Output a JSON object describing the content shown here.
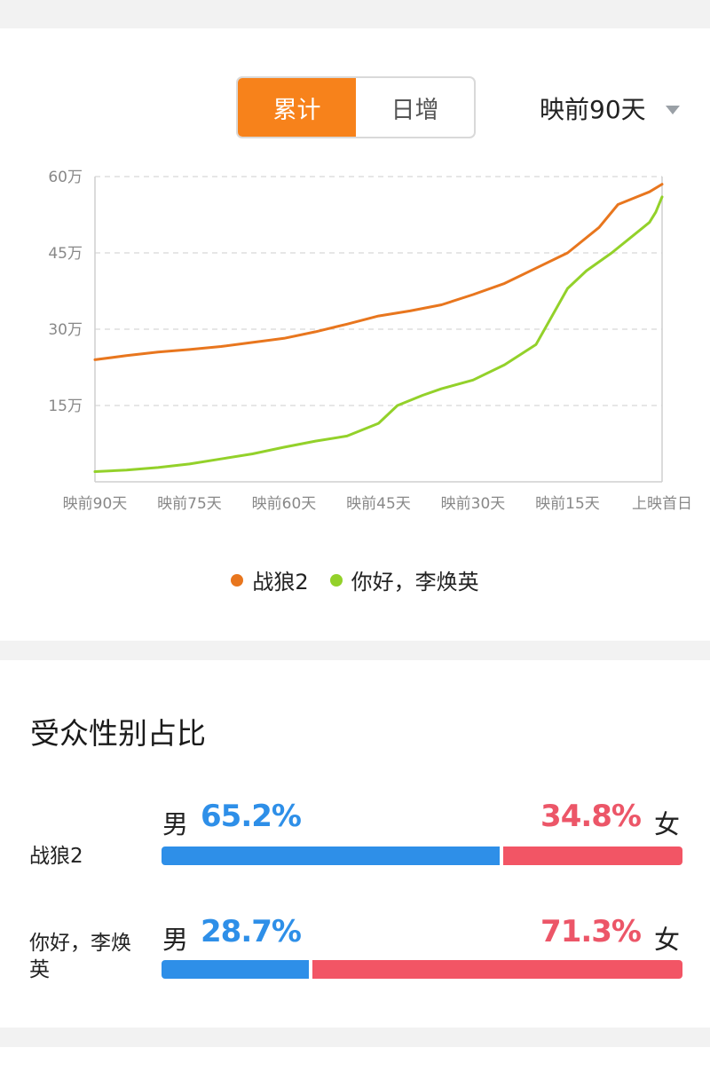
{
  "toggle": {
    "cumulative": "累计",
    "daily": "日增"
  },
  "range": {
    "label": "映前90天"
  },
  "chart_data": {
    "type": "line",
    "y_ticks": [
      "15万",
      "30万",
      "45万",
      "60万"
    ],
    "y_tick_values": [
      15,
      30,
      45,
      60
    ],
    "x_tick_labels": [
      "映前90天",
      "映前75天",
      "映前60天",
      "映前45天",
      "映前30天",
      "映前15天",
      "上映首日"
    ],
    "x_tick_values": [
      -90,
      -75,
      -60,
      -45,
      -30,
      -15,
      0
    ],
    "xlim": [
      -90,
      0
    ],
    "ylim": [
      0,
      60
    ],
    "grid": true,
    "legend": "bottom",
    "series": [
      {
        "name": "战狼2",
        "color": "#e8761e",
        "points": [
          [
            -90,
            24
          ],
          [
            -85,
            24.8
          ],
          [
            -80,
            25.5
          ],
          [
            -75,
            26
          ],
          [
            -70,
            26.6
          ],
          [
            -65,
            27.4
          ],
          [
            -60,
            28.2
          ],
          [
            -55,
            29.5
          ],
          [
            -50,
            31
          ],
          [
            -45,
            32.6
          ],
          [
            -40,
            33.6
          ],
          [
            -35,
            34.8
          ],
          [
            -30,
            36.8
          ],
          [
            -25,
            39
          ],
          [
            -20,
            42
          ],
          [
            -15,
            45
          ],
          [
            -10,
            50
          ],
          [
            -7,
            54.5
          ],
          [
            -4,
            56
          ],
          [
            -2,
            57
          ],
          [
            0,
            58.5
          ]
        ]
      },
      {
        "name": "你好，李焕英",
        "color": "#93d12a",
        "points": [
          [
            -90,
            2
          ],
          [
            -85,
            2.3
          ],
          [
            -80,
            2.8
          ],
          [
            -75,
            3.5
          ],
          [
            -70,
            4.5
          ],
          [
            -65,
            5.5
          ],
          [
            -60,
            6.8
          ],
          [
            -55,
            8
          ],
          [
            -50,
            9
          ],
          [
            -45,
            11.5
          ],
          [
            -42,
            15
          ],
          [
            -38,
            17
          ],
          [
            -35,
            18.3
          ],
          [
            -30,
            20
          ],
          [
            -25,
            23
          ],
          [
            -20,
            27
          ],
          [
            -15,
            38
          ],
          [
            -12,
            41.5
          ],
          [
            -8,
            45
          ],
          [
            -5,
            48
          ],
          [
            -2,
            51
          ],
          [
            -1,
            53
          ],
          [
            0,
            56
          ]
        ]
      }
    ]
  },
  "gender": {
    "title": "受众性别占比",
    "male_label": "男",
    "female_label": "女",
    "rows": [
      {
        "name": "战狼2",
        "male_pct": "65.2%",
        "female_pct": "34.8%",
        "male_value": 65.2
      },
      {
        "name": "你好，李焕英",
        "male_pct": "28.7%",
        "female_pct": "71.3%",
        "male_value": 28.7
      }
    ]
  }
}
